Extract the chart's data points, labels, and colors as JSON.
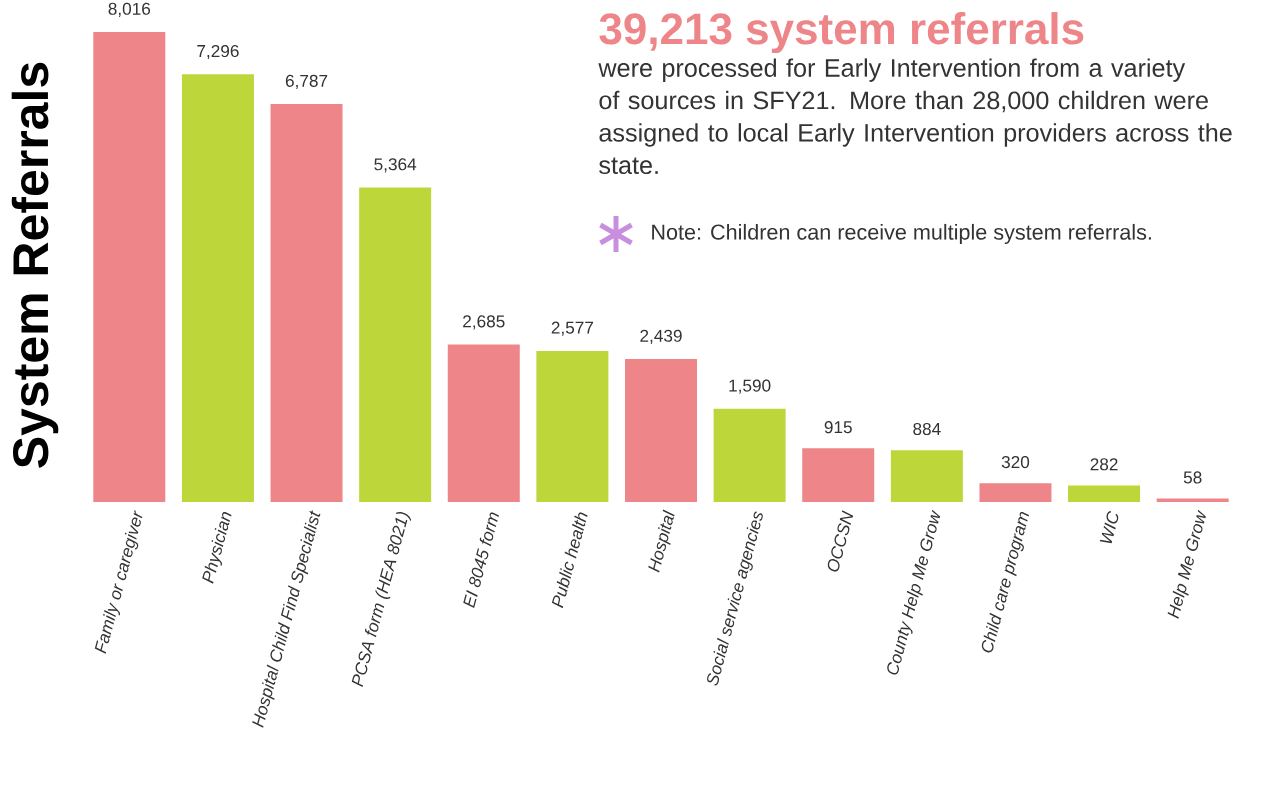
{
  "chart_data": {
    "type": "bar",
    "title": "39,213 system referrals",
    "subtitle": "were processed for Early Intervention from a variety of sources in SFY21. More than 28,000 children were assigned to local Early Intervention providers across the state.",
    "ylabel": "System Referrals",
    "annotations": [
      "Note: Children can receive multiple system referrals."
    ],
    "categories": [
      "Family or caregiver",
      "Physician",
      "Hospital Child Find Specialist",
      "PCSA form (HEA 8021)",
      "EI 8045 form",
      "Public health",
      "Hospital",
      "Social service agencies",
      "OCCSN",
      "County Help Me Grow",
      "Child care program",
      "WIC",
      "Help Me Grow"
    ],
    "values": [
      8016,
      7296,
      6787,
      5364,
      2685,
      2577,
      2439,
      1590,
      915,
      884,
      320,
      282,
      58
    ],
    "colors": [
      "#ee8589",
      "#bdd63a",
      "#ee8589",
      "#bdd63a",
      "#ee8589",
      "#bdd63a",
      "#ee8589",
      "#bdd63a",
      "#ee8589",
      "#bdd63a",
      "#ee8589",
      "#bdd63a",
      "#ee8589"
    ],
    "value_labels": [
      "8,016",
      "7,296",
      "6,787",
      "5,364",
      "2,685",
      "2,577",
      "2,439",
      "1,590",
      "915",
      "884",
      "320",
      "282",
      "58"
    ]
  }
}
